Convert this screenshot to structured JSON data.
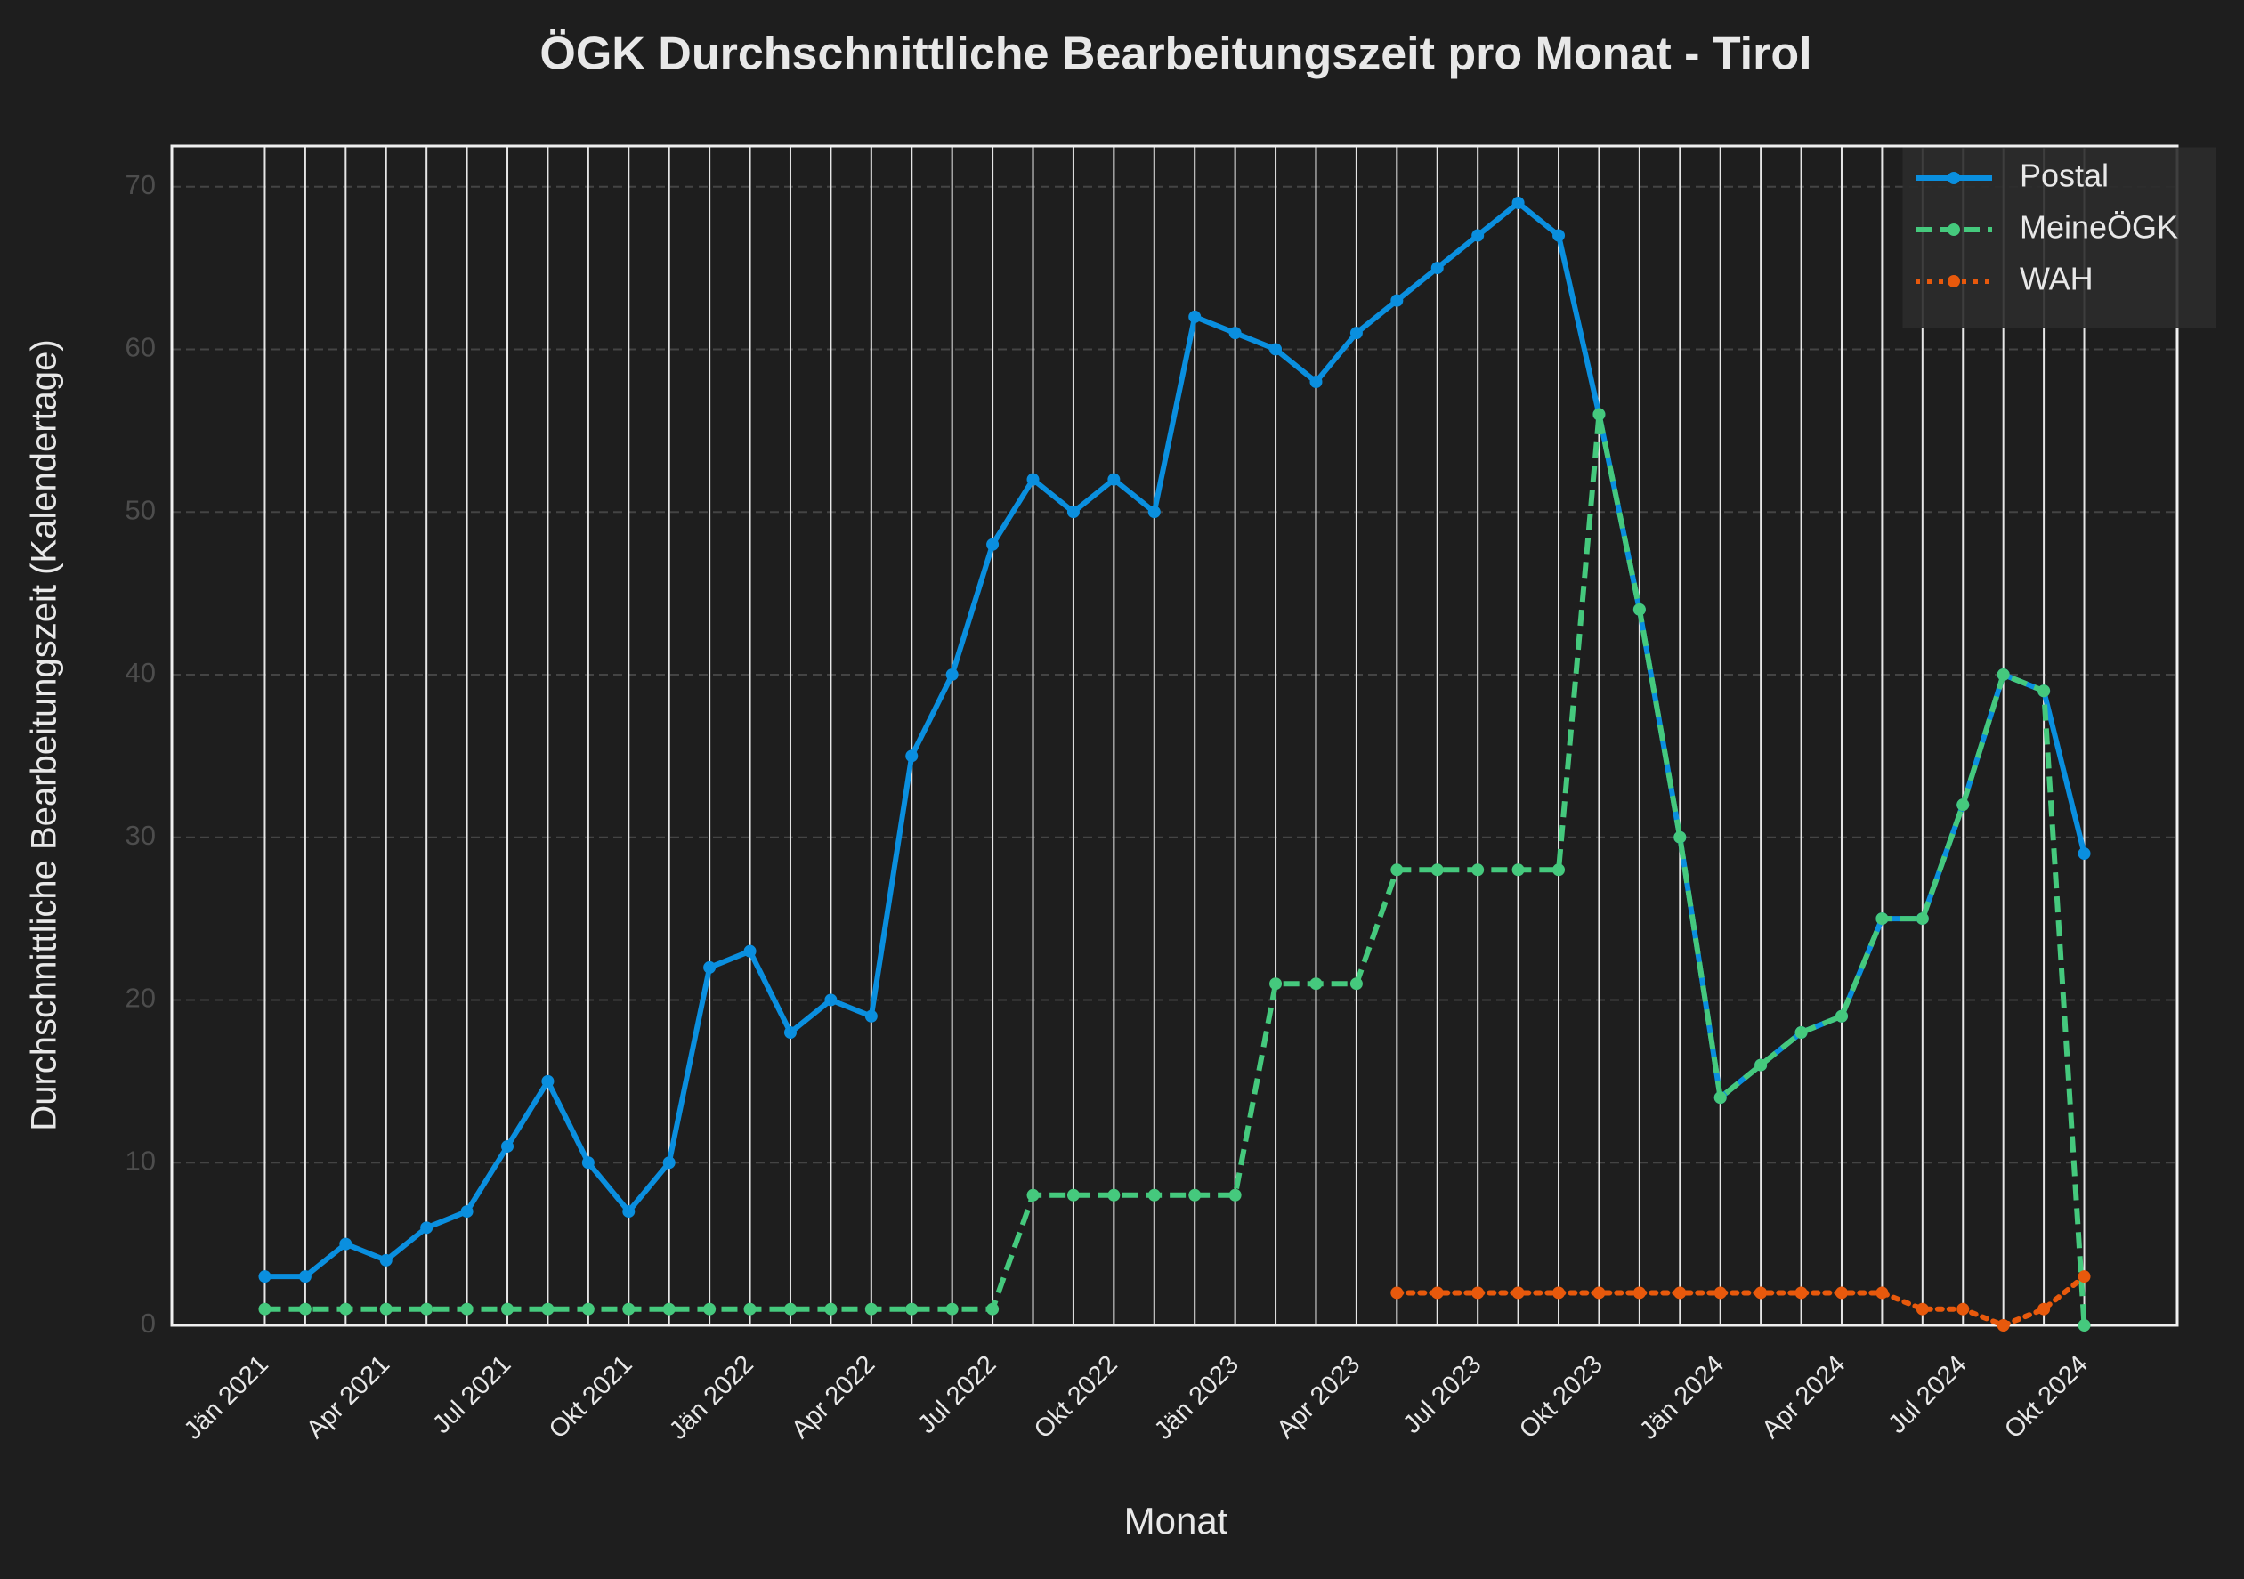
{
  "chart_data": {
    "type": "line",
    "title": "ÖGK Durchschnittliche Bearbeitungszeit pro Monat - Tirol",
    "xlabel": "Monat",
    "ylabel": "Durchschnittliche Bearbeitungszeit (Kalendertage)",
    "categories": [
      "Jän 2021",
      null,
      null,
      "Apr 2021",
      null,
      null,
      "Jul 2021",
      null,
      null,
      "Okt 2021",
      null,
      null,
      "Jän 2022",
      null,
      null,
      "Apr 2022",
      null,
      null,
      "Jul 2022",
      null,
      null,
      "Okt 2022",
      null,
      null,
      "Jän 2023",
      null,
      null,
      "Apr 2023",
      null,
      null,
      "Jul 2023",
      null,
      null,
      "Okt 2023",
      null,
      null,
      "Jän 2024",
      null,
      null,
      "Apr 2024",
      null,
      null,
      "Jul 2024",
      null,
      null,
      "Okt 2024"
    ],
    "series": [
      {
        "name": "Postal",
        "color": "#0a8fdf",
        "linestyle": "solid",
        "values": [
          3,
          3,
          5,
          4,
          6,
          7,
          11,
          15,
          10,
          7,
          10,
          22,
          23,
          18,
          20,
          19,
          35,
          40,
          48,
          52,
          50,
          52,
          50,
          62,
          61,
          60,
          58,
          61,
          63,
          65,
          67,
          69,
          67,
          56,
          44,
          30,
          14,
          16,
          18,
          19,
          25,
          25,
          32,
          40,
          39,
          29
        ]
      },
      {
        "name": "MeineÖGK",
        "color": "#45c97d",
        "linestyle": "dashed",
        "values": [
          1,
          1,
          1,
          1,
          1,
          1,
          1,
          1,
          1,
          1,
          1,
          1,
          1,
          1,
          1,
          1,
          1,
          1,
          1,
          8,
          8,
          8,
          8,
          8,
          8,
          21,
          21,
          21,
          28,
          28,
          28,
          28,
          28,
          56,
          44,
          30,
          14,
          16,
          18,
          19,
          25,
          25,
          32,
          40,
          39,
          0
        ]
      },
      {
        "name": "WAH",
        "color": "#e8590c",
        "linestyle": "dotted",
        "values": [
          null,
          null,
          null,
          null,
          null,
          null,
          null,
          null,
          null,
          null,
          null,
          null,
          null,
          null,
          null,
          null,
          null,
          null,
          null,
          null,
          null,
          null,
          null,
          null,
          null,
          null,
          null,
          null,
          2,
          2,
          2,
          2,
          2,
          2,
          2,
          2,
          2,
          2,
          2,
          2,
          2,
          1,
          1,
          0,
          1,
          3
        ]
      }
    ],
    "ylim": [
      0,
      72.5
    ],
    "yticks": [
      0,
      10,
      20,
      30,
      40,
      50,
      60,
      70
    ],
    "grid": true,
    "legend": "upper right"
  }
}
